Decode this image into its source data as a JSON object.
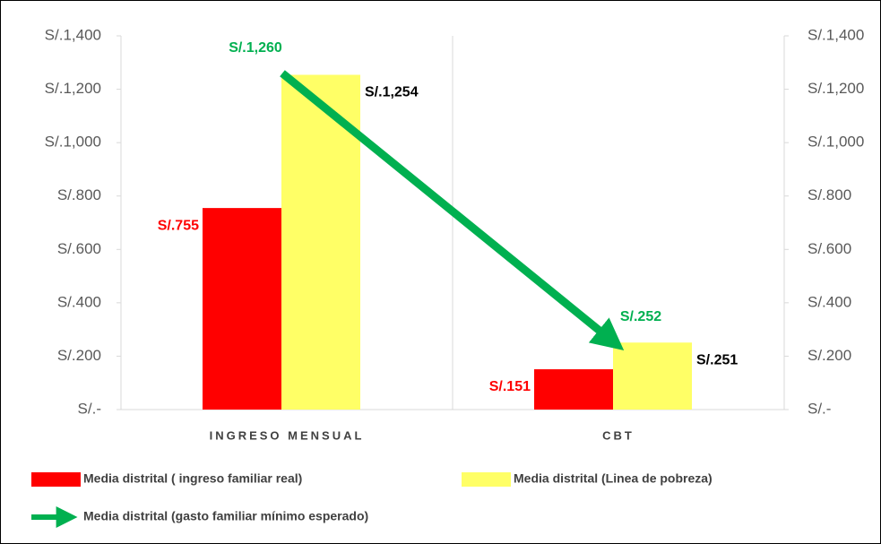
{
  "chart_data": {
    "type": "bar",
    "categories": [
      "INGRESO MENSUAL",
      "CBT"
    ],
    "series": [
      {
        "name": "Media  distrital ( ingreso familiar real)",
        "color": "#ff0000",
        "values": [
          755,
          151
        ],
        "value_labels": [
          "S/.755",
          "S/.151"
        ],
        "label_color": "#ff0000"
      },
      {
        "name": "Media distrital (Linea de pobreza)",
        "color": "#ffff66",
        "values": [
          1254,
          251
        ],
        "value_labels": [
          "S/.1,254",
          "S/.251"
        ],
        "label_color": "#000000"
      },
      {
        "name": "Media  distrital (gasto familiar mínimo esperado)",
        "type": "line",
        "color": "#00b050",
        "values": [
          1260,
          252
        ],
        "value_labels": [
          "S/.1,260",
          "S/.252"
        ],
        "label_color": "#00b050"
      }
    ],
    "ylim": [
      0,
      1400
    ],
    "yticks": [
      {
        "value": 0,
        "label": "S/.-"
      },
      {
        "value": 200,
        "label": "S/.200"
      },
      {
        "value": 400,
        "label": "S/.400"
      },
      {
        "value": 600,
        "label": "S/.600"
      },
      {
        "value": 800,
        "label": "S/.800"
      },
      {
        "value": 1000,
        "label": "S/.1,000"
      },
      {
        "value": 1200,
        "label": "S/.1,200"
      },
      {
        "value": 1400,
        "label": "S/.1,400"
      }
    ],
    "y2lim": [
      0,
      1400
    ],
    "y2ticks": [
      {
        "value": 0,
        "label": "S/.-"
      },
      {
        "value": 200,
        "label": "S/.200"
      },
      {
        "value": 400,
        "label": "S/.400"
      },
      {
        "value": 600,
        "label": "S/.600"
      },
      {
        "value": 800,
        "label": "S/.800"
      },
      {
        "value": 1000,
        "label": "S/.1,000"
      },
      {
        "value": 1200,
        "label": "S/.1,200"
      },
      {
        "value": 1400,
        "label": "S/.1,400"
      }
    ],
    "grid": false
  }
}
